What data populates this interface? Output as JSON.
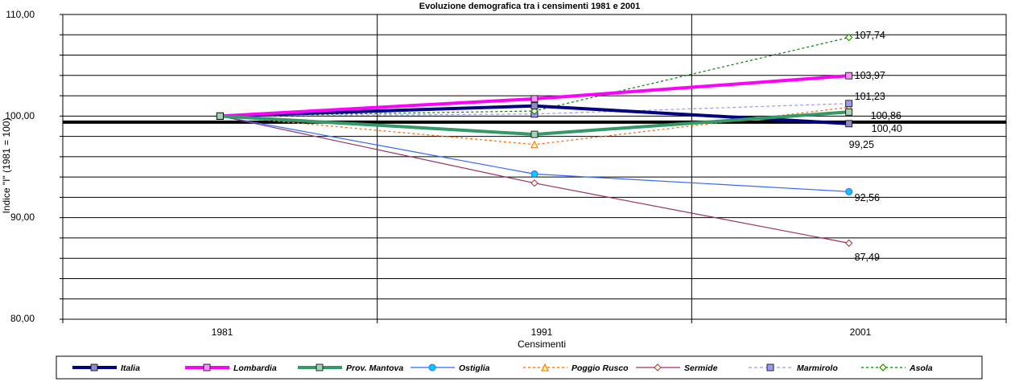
{
  "chart_data": {
    "type": "line",
    "title": "Evoluzione demografica tra i censimenti 1981 e 2001",
    "xlabel": "Censimenti",
    "ylabel": "Indice \"I\"  (1981 = 100)",
    "categories": [
      "1981",
      "1991",
      "2001"
    ],
    "ylim": [
      80,
      110
    ],
    "y_ticks": [
      "80,00",
      "90,00",
      "100,00",
      "110,00"
    ],
    "gridlines": "horizontal every 2 units, vertical between categories",
    "reference_line": 99.4,
    "legend_position": "bottom",
    "series": [
      {
        "name": "Italia",
        "values": [
          100,
          101.0,
          99.25
        ],
        "color": "#000080",
        "marker": "square",
        "dash": "solid",
        "width": "thick"
      },
      {
        "name": "Lombardia",
        "values": [
          100,
          101.7,
          103.97
        ],
        "color": "#ff00ff",
        "marker": "square",
        "dash": "solid",
        "width": "thick"
      },
      {
        "name": "Prov. Mantova",
        "values": [
          100,
          98.2,
          100.4
        ],
        "color": "#339966",
        "marker": "square",
        "dash": "solid",
        "width": "thick"
      },
      {
        "name": "Ostiglia",
        "values": [
          100,
          94.3,
          92.56
        ],
        "color": "#3366ff",
        "marker": "circle",
        "dash": "solid",
        "width": "thin"
      },
      {
        "name": "Poggio Rusco",
        "values": [
          100,
          97.2,
          100.86
        ],
        "color": "#ff6600",
        "marker": "triangle",
        "dash": "dotted",
        "width": "thin"
      },
      {
        "name": "Sermide",
        "values": [
          100,
          93.4,
          87.49
        ],
        "color": "#993366",
        "marker": "diamond",
        "dash": "solid",
        "width": "thin"
      },
      {
        "name": "Marmirolo",
        "values": [
          100,
          100.2,
          101.23
        ],
        "color": "#9999ff",
        "marker": "square",
        "dash": "dashed",
        "width": "thin"
      },
      {
        "name": "Asola",
        "values": [
          100,
          100.5,
          107.74
        ],
        "color": "#008000",
        "marker": "diamond",
        "dash": "dotted",
        "width": "thin"
      }
    ],
    "data_labels": [
      "107,74",
      "103,97",
      "101,23",
      "100,86",
      "100,40",
      "99,25",
      "92,56",
      "87,49"
    ]
  }
}
